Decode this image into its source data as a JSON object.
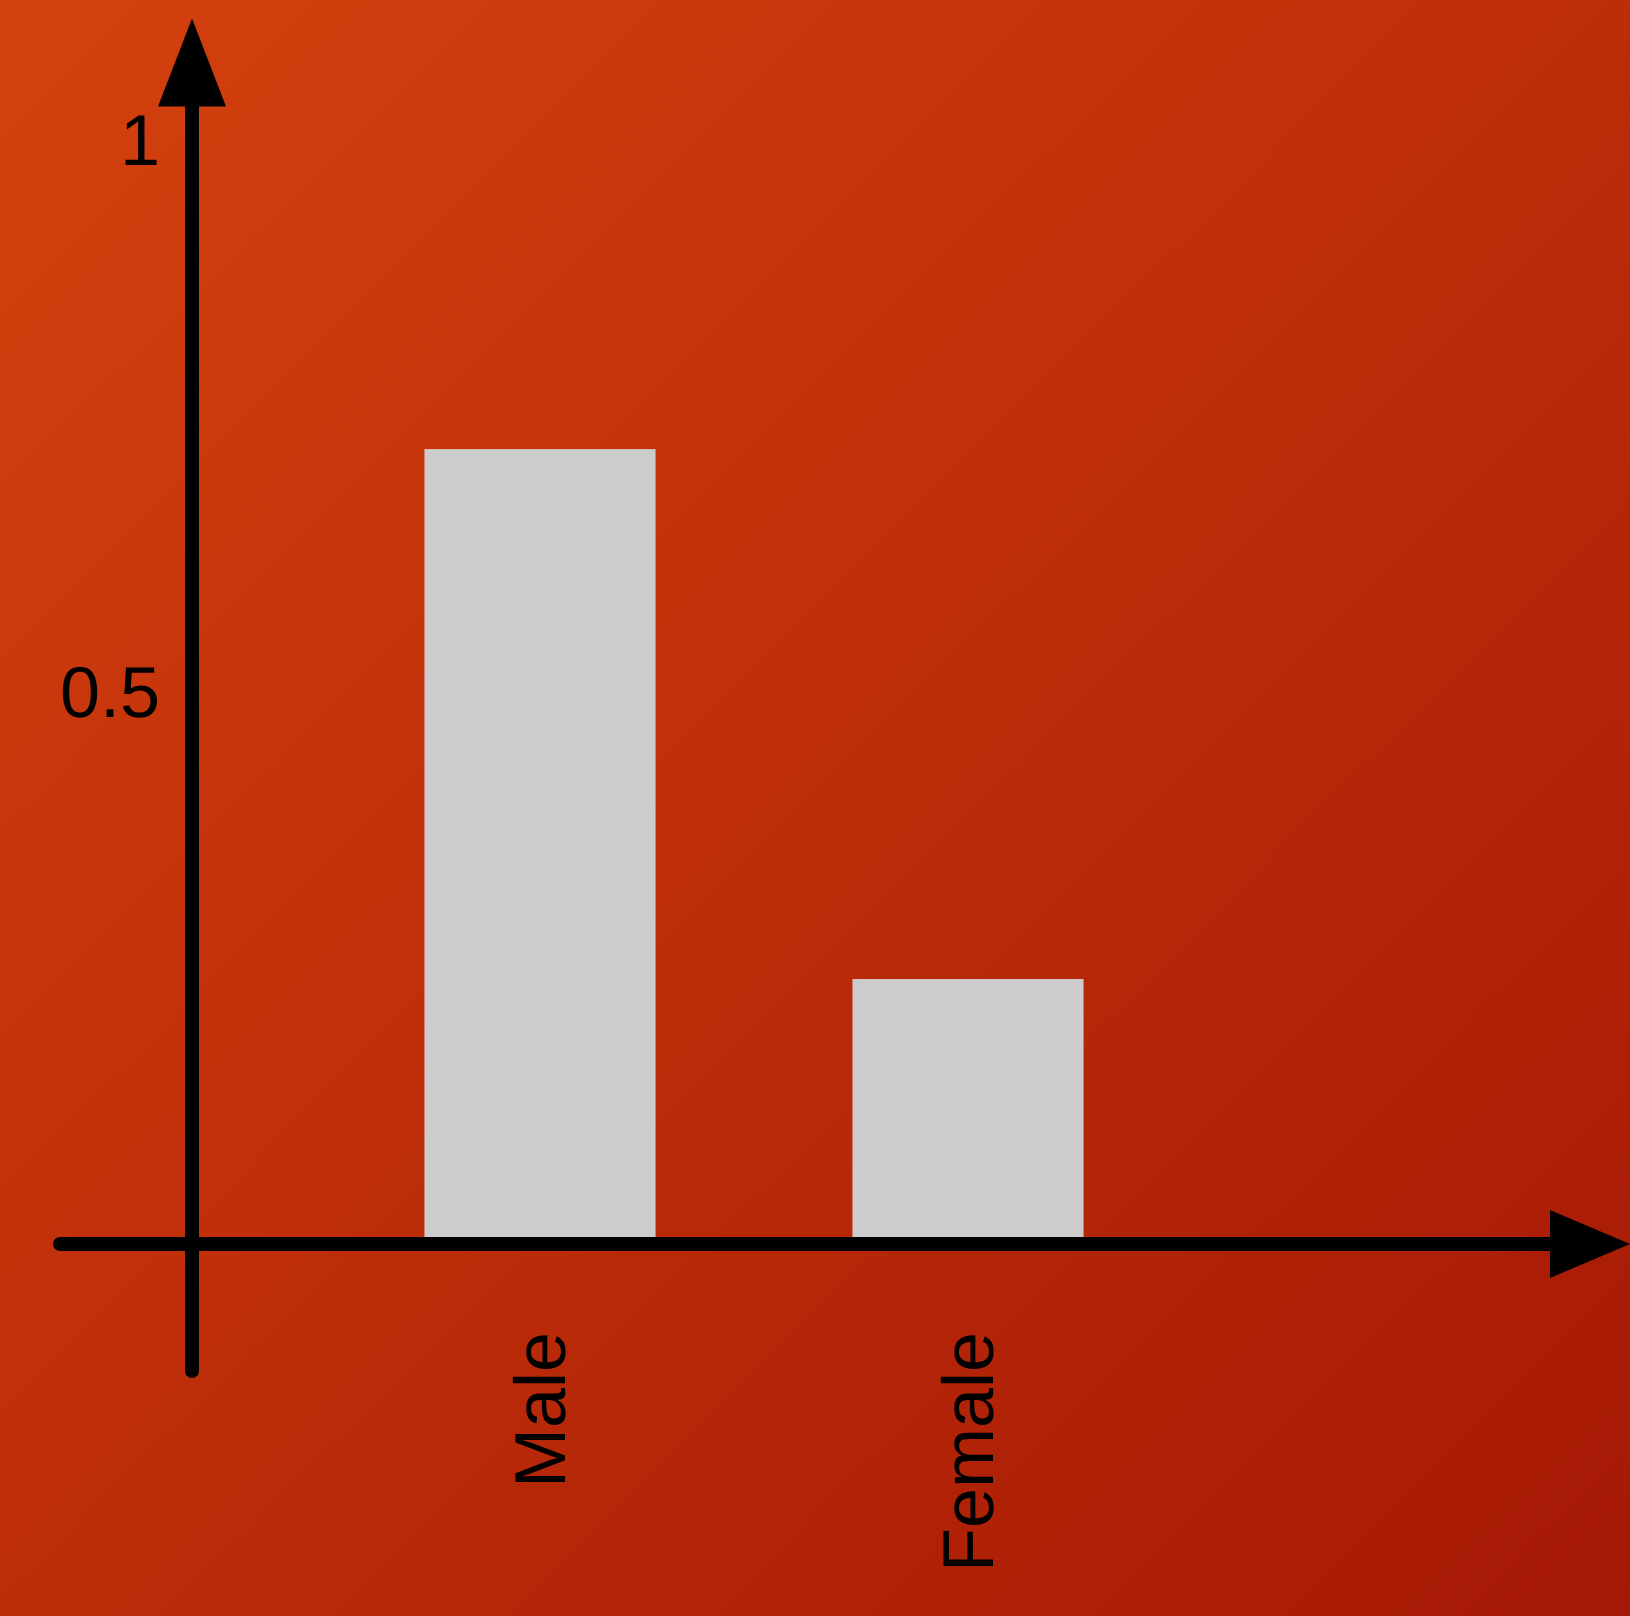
{
  "chart_data": {
    "type": "bar",
    "categories": [
      "Male",
      "Female"
    ],
    "values": [
      0.72,
      0.24
    ],
    "color": "#cccccc",
    "ylim": [
      -0.115,
      1.11
    ],
    "yticks": [
      0.5,
      1
    ],
    "grid": false
  }
}
